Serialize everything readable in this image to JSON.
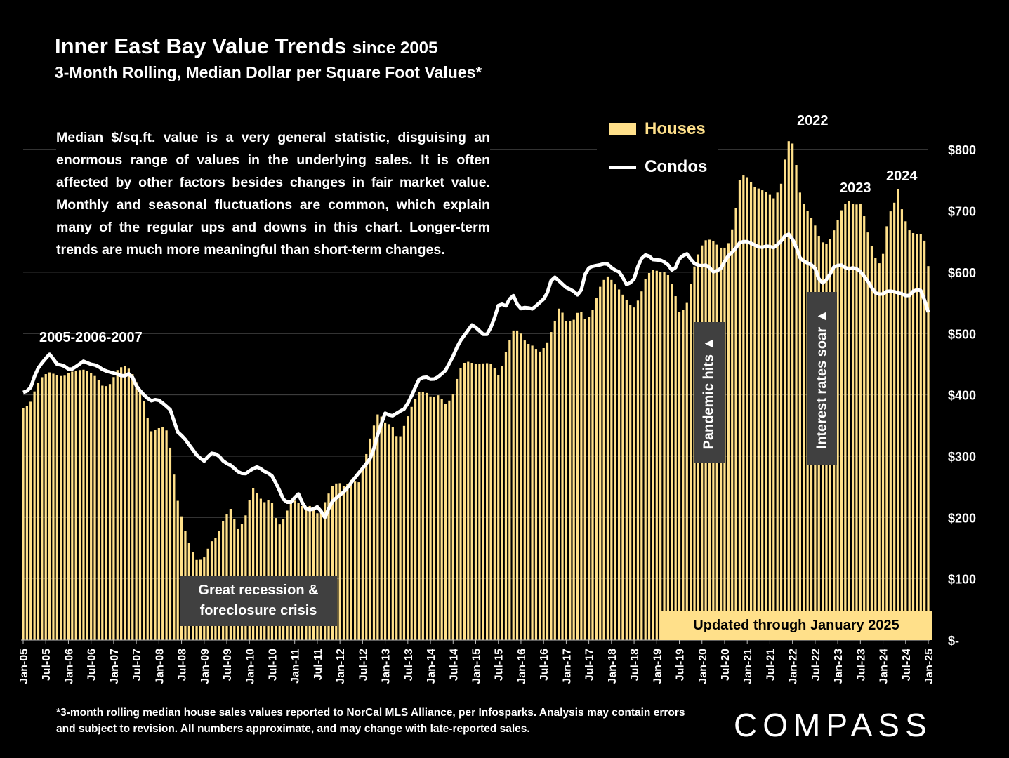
{
  "title_main": "Inner East Bay Value Trends",
  "title_small": "since 2005",
  "subtitle": "3-Month Rolling, Median Dollar per Square Foot Values*",
  "description": "Median $/sq.ft. value is a very general statistic, disguising an enormous range of values in the underlying sales. It is often affected by other factors besides changes in fair market value. Monthly and seasonal fluctuations are common, which explain many of the regular ups and downs in this chart. Longer-term trends are much more meaningful than short-term changes.",
  "legend": {
    "houses": "Houses",
    "condos": "Condos"
  },
  "annotations": {
    "y2005_2007": "2005-2006-2007",
    "y2022": "2022",
    "y2023": "2023",
    "y2024": "2024",
    "recession_line1": "Great recession &",
    "recession_line2": "foreclosure crisis",
    "pandemic": "Pandemic hits ▲",
    "rates": "Interest rates soar ▲",
    "updated": "Updated through January 2025"
  },
  "footnote": "*3-month rolling median house sales values reported to NorCal MLS Alliance, per Infosparks. Analysis may contain errors and subject to revision. All numbers approximate, and may change with late-reported sales.",
  "logo": "COMPASS",
  "colors": {
    "houses": "#ffe08a",
    "condos": "#ffffff",
    "background": "#000000",
    "annotation_box": "#404040"
  },
  "chart_data": {
    "type": "bar",
    "title": "Inner East Bay Value Trends since 2005",
    "subtitle": "3-Month Rolling, Median Dollar per Square Foot Values*",
    "xlabel": "",
    "ylabel": "",
    "ylim": [
      0,
      850
    ],
    "y_ticks": [
      "$-",
      "$100",
      "$200",
      "$300",
      "$400",
      "$500",
      "$600",
      "$700",
      "$800"
    ],
    "y_tick_values": [
      0,
      100,
      200,
      300,
      400,
      500,
      600,
      700,
      800
    ],
    "x_start": "Jan-05",
    "x_end": "Jan-25",
    "x_tick_labels": [
      "Jan-05",
      "Jul-05",
      "Jan-06",
      "Jul-06",
      "Jan-07",
      "Jul-07",
      "Jan-08",
      "Jul-08",
      "Jan-09",
      "Jul-09",
      "Jan-10",
      "Jul-10",
      "Jan-11",
      "Jul-11",
      "Jan-12",
      "Jul-12",
      "Jan-13",
      "Jul-13",
      "Jan-14",
      "Jul-14",
      "Jan-15",
      "Jul-15",
      "Jan-16",
      "Jul-16",
      "Jan-17",
      "Jul-17",
      "Jan-18",
      "Jul-18",
      "Jan-19",
      "Jul-19",
      "Jan-20",
      "Jul-20",
      "Jan-21",
      "Jul-21",
      "Jan-22",
      "Jul-22",
      "Jan-23",
      "Jul-23",
      "Jan-24",
      "Jul-24",
      "Jan-25"
    ],
    "grid": true,
    "legend_position": "top-right",
    "series": [
      {
        "name": "Houses",
        "type": "bar",
        "anchors": [
          [
            0,
            378
          ],
          [
            2,
            385
          ],
          [
            4,
            415
          ],
          [
            6,
            432
          ],
          [
            8,
            437
          ],
          [
            10,
            432
          ],
          [
            12,
            430
          ],
          [
            14,
            437
          ],
          [
            16,
            440
          ],
          [
            18,
            441
          ],
          [
            20,
            437
          ],
          [
            22,
            428
          ],
          [
            24,
            412
          ],
          [
            26,
            418
          ],
          [
            28,
            440
          ],
          [
            30,
            448
          ],
          [
            32,
            441
          ],
          [
            34,
            418
          ],
          [
            36,
            390
          ],
          [
            38,
            340
          ],
          [
            40,
            345
          ],
          [
            42,
            348
          ],
          [
            43,
            340
          ],
          [
            44,
            310
          ],
          [
            45,
            270
          ],
          [
            46,
            230
          ],
          [
            48,
            185
          ],
          [
            50,
            150
          ],
          [
            52,
            128
          ],
          [
            54,
            135
          ],
          [
            56,
            160
          ],
          [
            58,
            170
          ],
          [
            60,
            200
          ],
          [
            62,
            215
          ],
          [
            64,
            180
          ],
          [
            66,
            195
          ],
          [
            68,
            240
          ],
          [
            69,
            252
          ],
          [
            70,
            235
          ],
          [
            72,
            225
          ],
          [
            74,
            230
          ],
          [
            76,
            185
          ],
          [
            78,
            200
          ],
          [
            80,
            230
          ],
          [
            82,
            225
          ],
          [
            84,
            215
          ],
          [
            86,
            220
          ],
          [
            88,
            205
          ],
          [
            90,
            225
          ],
          [
            92,
            250
          ],
          [
            94,
            258
          ],
          [
            96,
            250
          ],
          [
            98,
            262
          ],
          [
            100,
            255
          ],
          [
            102,
            295
          ],
          [
            104,
            340
          ],
          [
            106,
            372
          ],
          [
            108,
            355
          ],
          [
            110,
            350
          ],
          [
            112,
            325
          ],
          [
            114,
            355
          ],
          [
            116,
            382
          ],
          [
            118,
            405
          ],
          [
            120,
            405
          ],
          [
            122,
            395
          ],
          [
            124,
            400
          ],
          [
            126,
            385
          ],
          [
            128,
            395
          ],
          [
            130,
            440
          ],
          [
            132,
            455
          ],
          [
            134,
            452
          ],
          [
            136,
            450
          ],
          [
            138,
            452
          ],
          [
            140,
            450
          ],
          [
            142,
            430
          ],
          [
            144,
            470
          ],
          [
            146,
            505
          ],
          [
            148,
            505
          ],
          [
            150,
            485
          ],
          [
            152,
            480
          ],
          [
            154,
            470
          ],
          [
            156,
            480
          ],
          [
            158,
            510
          ],
          [
            160,
            545
          ],
          [
            162,
            520
          ],
          [
            164,
            520
          ],
          [
            166,
            540
          ],
          [
            168,
            520
          ],
          [
            170,
            540
          ],
          [
            172,
            575
          ],
          [
            174,
            595
          ],
          [
            176,
            585
          ],
          [
            178,
            570
          ],
          [
            180,
            555
          ],
          [
            182,
            540
          ],
          [
            184,
            560
          ],
          [
            186,
            595
          ],
          [
            188,
            605
          ],
          [
            190,
            600
          ],
          [
            192,
            600
          ],
          [
            194,
            575
          ],
          [
            196,
            530
          ],
          [
            198,
            550
          ],
          [
            200,
            605
          ],
          [
            202,
            640
          ],
          [
            204,
            655
          ],
          [
            206,
            650
          ],
          [
            208,
            640
          ],
          [
            210,
            640
          ],
          [
            212,
            680
          ],
          [
            214,
            760
          ],
          [
            216,
            755
          ],
          [
            218,
            740
          ],
          [
            220,
            735
          ],
          [
            222,
            730
          ],
          [
            224,
            720
          ],
          [
            226,
            740
          ],
          [
            228,
            810
          ],
          [
            229,
            820
          ],
          [
            230,
            800
          ],
          [
            232,
            720
          ],
          [
            234,
            700
          ],
          [
            236,
            680
          ],
          [
            238,
            650
          ],
          [
            240,
            645
          ],
          [
            242,
            670
          ],
          [
            244,
            700
          ],
          [
            246,
            718
          ],
          [
            248,
            710
          ],
          [
            250,
            712
          ],
          [
            252,
            665
          ],
          [
            254,
            625
          ],
          [
            256,
            610
          ],
          [
            258,
            690
          ],
          [
            260,
            715
          ],
          [
            261,
            735
          ],
          [
            262,
            705
          ],
          [
            264,
            670
          ],
          [
            266,
            662
          ],
          [
            268,
            662
          ],
          [
            269,
            650
          ],
          [
            270,
            610
          ]
        ]
      },
      {
        "name": "Condos",
        "type": "line",
        "anchors": [
          [
            0,
            404
          ],
          [
            2,
            408
          ],
          [
            4,
            440
          ],
          [
            6,
            455
          ],
          [
            8,
            467
          ],
          [
            10,
            450
          ],
          [
            12,
            448
          ],
          [
            14,
            440
          ],
          [
            16,
            447
          ],
          [
            18,
            455
          ],
          [
            20,
            450
          ],
          [
            22,
            448
          ],
          [
            24,
            440
          ],
          [
            26,
            437
          ],
          [
            28,
            434
          ],
          [
            30,
            430
          ],
          [
            32,
            436
          ],
          [
            34,
            412
          ],
          [
            36,
            400
          ],
          [
            38,
            390
          ],
          [
            40,
            393
          ],
          [
            42,
            385
          ],
          [
            44,
            375
          ],
          [
            46,
            340
          ],
          [
            48,
            330
          ],
          [
            50,
            315
          ],
          [
            52,
            300
          ],
          [
            54,
            292
          ],
          [
            56,
            305
          ],
          [
            58,
            303
          ],
          [
            60,
            290
          ],
          [
            62,
            285
          ],
          [
            64,
            275
          ],
          [
            66,
            270
          ],
          [
            68,
            278
          ],
          [
            70,
            283
          ],
          [
            72,
            275
          ],
          [
            74,
            270
          ],
          [
            76,
            250
          ],
          [
            78,
            225
          ],
          [
            80,
            225
          ],
          [
            82,
            240
          ],
          [
            84,
            215
          ],
          [
            86,
            212
          ],
          [
            88,
            218
          ],
          [
            90,
            200
          ],
          [
            92,
            225
          ],
          [
            94,
            235
          ],
          [
            96,
            243
          ],
          [
            98,
            258
          ],
          [
            100,
            272
          ],
          [
            102,
            285
          ],
          [
            104,
            300
          ],
          [
            106,
            340
          ],
          [
            108,
            370
          ],
          [
            110,
            365
          ],
          [
            112,
            372
          ],
          [
            114,
            378
          ],
          [
            116,
            400
          ],
          [
            118,
            425
          ],
          [
            120,
            430
          ],
          [
            122,
            424
          ],
          [
            124,
            430
          ],
          [
            126,
            440
          ],
          [
            128,
            460
          ],
          [
            130,
            485
          ],
          [
            132,
            500
          ],
          [
            134,
            515
          ],
          [
            136,
            505
          ],
          [
            138,
            495
          ],
          [
            140,
            515
          ],
          [
            142,
            550
          ],
          [
            144,
            545
          ],
          [
            146,
            565
          ],
          [
            148,
            540
          ],
          [
            150,
            543
          ],
          [
            152,
            540
          ],
          [
            154,
            550
          ],
          [
            156,
            560
          ],
          [
            158,
            595
          ],
          [
            160,
            585
          ],
          [
            162,
            575
          ],
          [
            164,
            570
          ],
          [
            166,
            560
          ],
          [
            168,
            605
          ],
          [
            170,
            610
          ],
          [
            172,
            612
          ],
          [
            174,
            615
          ],
          [
            176,
            605
          ],
          [
            178,
            600
          ],
          [
            180,
            580
          ],
          [
            182,
            585
          ],
          [
            184,
            620
          ],
          [
            186,
            630
          ],
          [
            188,
            620
          ],
          [
            190,
            620
          ],
          [
            192,
            615
          ],
          [
            194,
            600
          ],
          [
            196,
            625
          ],
          [
            198,
            630
          ],
          [
            200,
            615
          ],
          [
            202,
            610
          ],
          [
            204,
            612
          ],
          [
            206,
            600
          ],
          [
            208,
            605
          ],
          [
            210,
            625
          ],
          [
            212,
            635
          ],
          [
            214,
            650
          ],
          [
            216,
            650
          ],
          [
            218,
            645
          ],
          [
            220,
            640
          ],
          [
            222,
            643
          ],
          [
            224,
            640
          ],
          [
            226,
            650
          ],
          [
            228,
            665
          ],
          [
            230,
            650
          ],
          [
            232,
            620
          ],
          [
            234,
            615
          ],
          [
            236,
            610
          ],
          [
            238,
            580
          ],
          [
            240,
            590
          ],
          [
            242,
            610
          ],
          [
            244,
            612
          ],
          [
            246,
            605
          ],
          [
            248,
            608
          ],
          [
            250,
            600
          ],
          [
            252,
            585
          ],
          [
            254,
            567
          ],
          [
            256,
            563
          ],
          [
            258,
            570
          ],
          [
            260,
            568
          ],
          [
            262,
            565
          ],
          [
            264,
            560
          ],
          [
            266,
            572
          ],
          [
            268,
            570
          ],
          [
            270,
            535
          ]
        ]
      }
    ]
  }
}
